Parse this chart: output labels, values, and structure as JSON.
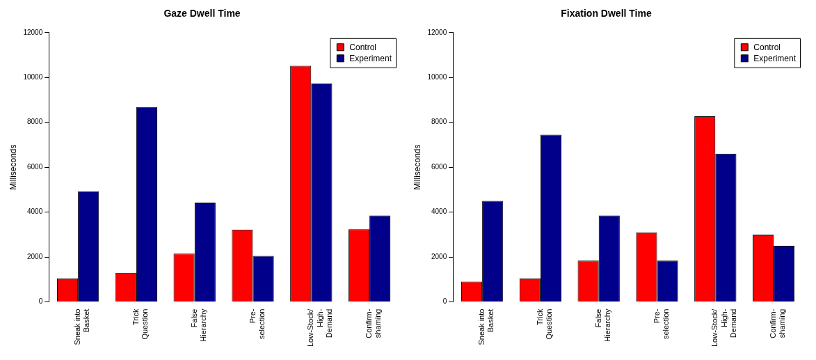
{
  "chart_data": [
    {
      "type": "bar",
      "title": "Gaze Dwell Time",
      "ylabel": "Milliseconds",
      "categories": [
        "Sneak into\nBasket",
        "Trick\nQuestion",
        "False\nHierarchy",
        "Pre-\nselection",
        "Low-Stock/\nHigh-\nDemand",
        "Confirm-\nshaming"
      ],
      "series": [
        {
          "name": "Control",
          "color": "#ff0000",
          "values": [
            1050,
            1300,
            2150,
            3220,
            10520,
            3240
          ]
        },
        {
          "name": "Experiment",
          "color": "#00008b",
          "values": [
            4930,
            8680,
            4420,
            2050,
            9740,
            3850
          ]
        }
      ],
      "ylim": [
        0,
        12000
      ],
      "yticks": [
        0,
        2000,
        4000,
        6000,
        8000,
        10000,
        12000
      ],
      "grid": false,
      "legend": "top right"
    },
    {
      "type": "bar",
      "title": "Fixation Dwell Time",
      "ylabel": "Milliseconds",
      "categories": [
        "Sneak into\nBasket",
        "Trick\nQuestion",
        "False\nHierarchy",
        "Pre-\nselection",
        "Low-Stock/\nHigh-\nDemand",
        "Confirm-\nshaming"
      ],
      "series": [
        {
          "name": "Control",
          "color": "#ff0000",
          "values": [
            900,
            1050,
            1840,
            3100,
            8270,
            3000
          ]
        },
        {
          "name": "Experiment",
          "color": "#00008b",
          "values": [
            4500,
            7450,
            3850,
            1840,
            6600,
            2500
          ]
        }
      ],
      "ylim": [
        0,
        12000
      ],
      "yticks": [
        0,
        2000,
        4000,
        6000,
        8000,
        10000,
        12000
      ],
      "grid": false,
      "legend": "top right"
    }
  ]
}
